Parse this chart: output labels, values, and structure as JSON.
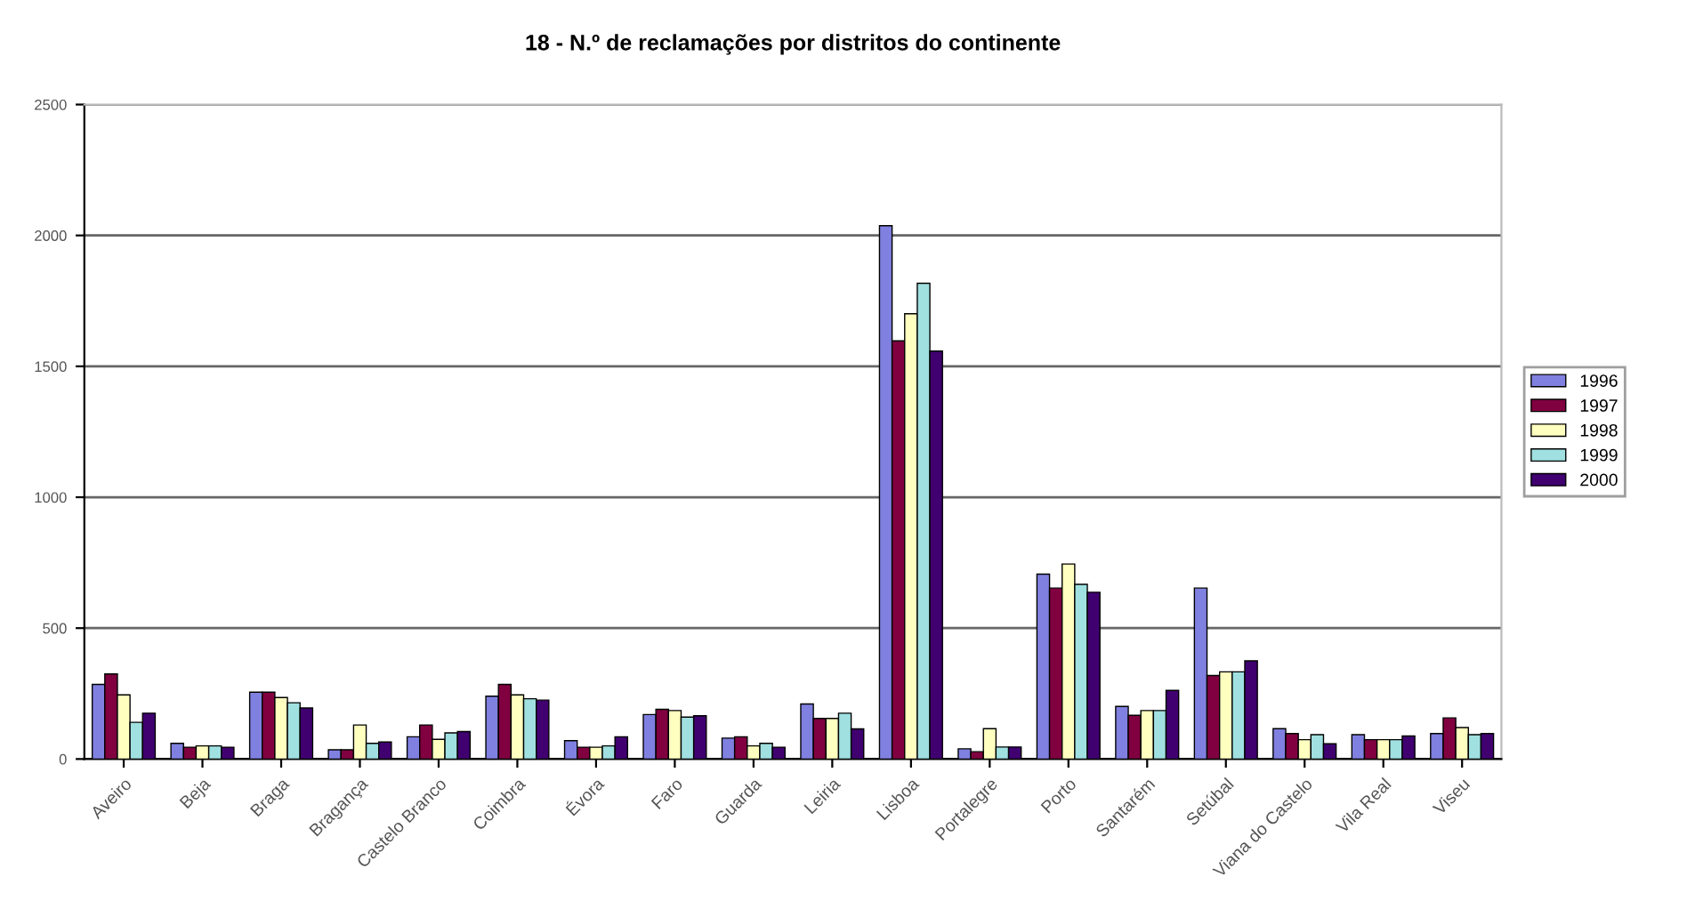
{
  "chart_data": {
    "type": "bar",
    "title": "18 - N.º de reclamações por distritos do continente",
    "categories": [
      "Aveiro",
      "Beja",
      "Braga",
      "Bragança",
      "Castelo Branco",
      "Coimbra",
      "Évora",
      "Faro",
      "Guarda",
      "Leiria",
      "Lisboa",
      "Portalegre",
      "Porto",
      "Santarém",
      "Setúbal",
      "Viana do Castelo",
      "Vila Real",
      "Viseu"
    ],
    "series": [
      {
        "name": "1996",
        "color": "#8080e0",
        "values": [
          285,
          60,
          255,
          35,
          85,
          240,
          70,
          170,
          80,
          210,
          2037,
          39,
          706,
          201,
          653,
          116,
          93,
          97
        ]
      },
      {
        "name": "1997",
        "color": "#800040",
        "values": [
          325,
          45,
          255,
          35,
          130,
          285,
          45,
          190,
          85,
          155,
          1597,
          28,
          653,
          167,
          319,
          97,
          74,
          157
        ]
      },
      {
        "name": "1998",
        "color": "#ffffc0",
        "values": [
          245,
          50,
          235,
          130,
          75,
          245,
          45,
          185,
          50,
          155,
          1701,
          116,
          745,
          185,
          333,
          74,
          74,
          120
        ]
      },
      {
        "name": "1999",
        "color": "#a0e0e0",
        "values": [
          140,
          50,
          215,
          60,
          100,
          230,
          50,
          160,
          60,
          175,
          1817,
          46,
          667,
          185,
          333,
          93,
          74,
          93
        ]
      },
      {
        "name": "2000",
        "color": "#400070",
        "values": [
          175,
          45,
          195,
          65,
          105,
          225,
          85,
          165,
          45,
          115,
          1558,
          46,
          637,
          262,
          375,
          58,
          88,
          97
        ]
      }
    ],
    "ylim": [
      0,
      2500
    ],
    "yticks": [
      0,
      500,
      1000,
      1500,
      2000,
      2500
    ],
    "grid": "y",
    "legend": "right"
  }
}
